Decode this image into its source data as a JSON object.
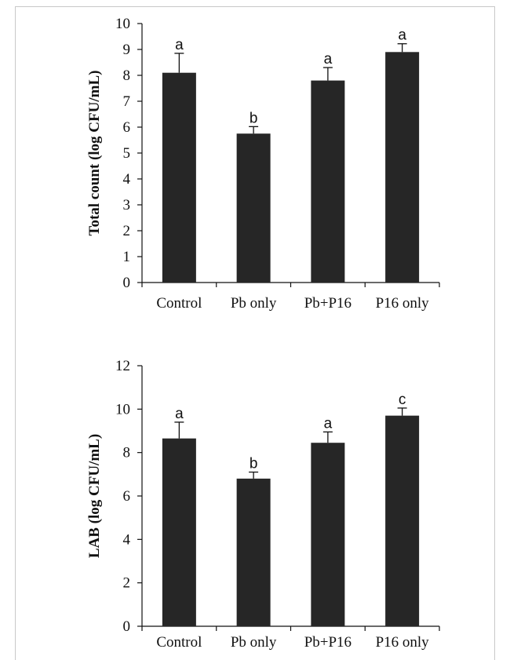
{
  "bar_color": "#262626",
  "chart_data": [
    {
      "type": "bar",
      "title": "",
      "xlabel": "",
      "ylabel": "Total count (log CFU/mL)",
      "ylim": [
        0,
        10
      ],
      "yticks": [
        "0",
        "1",
        "2",
        "3",
        "4",
        "5",
        "6",
        "7",
        "8",
        "9",
        "10"
      ],
      "categories": [
        "Control",
        "Pb only",
        "Pb+P16",
        "P16 only"
      ],
      "values": [
        8.1,
        5.75,
        7.8,
        8.9
      ],
      "errors": [
        0.75,
        0.27,
        0.5,
        0.32
      ],
      "letters": [
        "a",
        "b",
        "a",
        "a"
      ],
      "grid": false
    },
    {
      "type": "bar",
      "title": "",
      "xlabel": "",
      "ylabel": "LAB (log CFU/mL)",
      "ylim": [
        0,
        12
      ],
      "yticks": [
        "0",
        "2",
        "4",
        "6",
        "8",
        "10",
        "12"
      ],
      "categories": [
        "Control",
        "Pb only",
        "Pb+P16",
        "P16 only"
      ],
      "values": [
        8.65,
        6.8,
        8.45,
        9.7
      ],
      "errors": [
        0.75,
        0.3,
        0.5,
        0.35
      ],
      "letters": [
        "a",
        "b",
        "a",
        "c"
      ],
      "grid": false
    }
  ]
}
